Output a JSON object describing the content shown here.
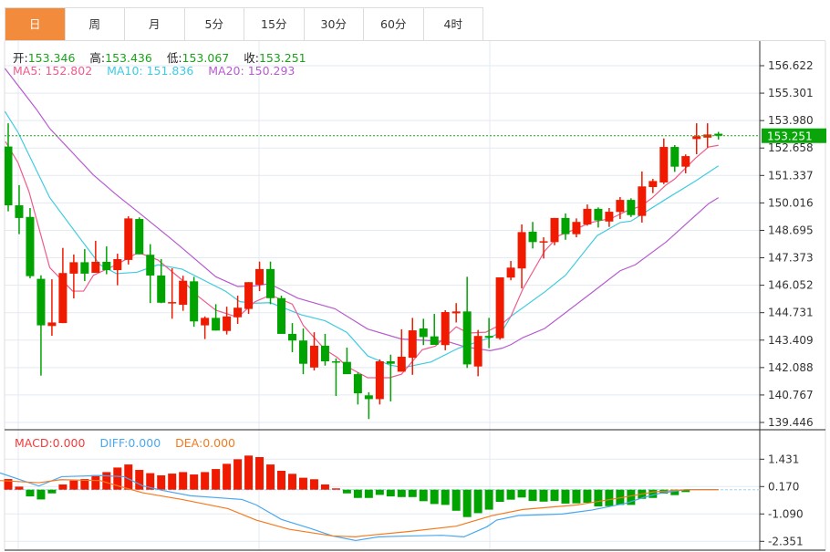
{
  "tabs": [
    {
      "label": "日",
      "active": true
    },
    {
      "label": "周"
    },
    {
      "label": "月"
    },
    {
      "label": "5分"
    },
    {
      "label": "15分"
    },
    {
      "label": "30分"
    },
    {
      "label": "60分"
    },
    {
      "label": "4时"
    }
  ],
  "ohlc": {
    "open_label": "开:",
    "open": "153.346",
    "high_label": "高:",
    "high": "153.436",
    "low_label": "低:",
    "low": "153.067",
    "close_label": "收:",
    "close": "153.251"
  },
  "ma": {
    "ma5": "MA5: 152.802",
    "ma10": "MA10: 151.836",
    "ma20": "MA20: 150.293"
  },
  "macd_legend": {
    "macd": "MACD:0.000",
    "diff": "DIFF:0.000",
    "dea": "DEA:0.000"
  },
  "colors": {
    "up": "#f01a00",
    "down": "#00a300",
    "ma5": "#ee5c8c",
    "ma10": "#3fcbe0",
    "ma20": "#b75bd0",
    "diff": "#4aa8f0",
    "dea": "#f57a1e",
    "tab_active": "#f28c3c"
  },
  "chart_data": {
    "type": "candlestick",
    "last_price_tag": "153.251",
    "last_price": 153.251,
    "price_ticks": [
      "156.622",
      "155.301",
      "153.980",
      "152.658",
      "151.337",
      "150.016",
      "148.695",
      "147.373",
      "146.052",
      "144.731",
      "143.409",
      "142.088",
      "140.767",
      "139.446"
    ],
    "price_range": [
      139.446,
      156.622
    ],
    "macd_ticks": [
      "1.431",
      "0.170",
      "-1.090",
      "-2.351"
    ],
    "candles_ohlc": [
      [
        152.73,
        153.85,
        149.61,
        149.9
      ],
      [
        149.9,
        150.87,
        148.51,
        149.29
      ],
      [
        149.34,
        149.77,
        146.39,
        146.49
      ],
      [
        146.36,
        146.53,
        141.7,
        144.12
      ],
      [
        144.09,
        146.34,
        143.62,
        144.26
      ],
      [
        144.23,
        147.85,
        144.23,
        146.64
      ],
      [
        146.61,
        147.53,
        145.42,
        147.16
      ],
      [
        147.16,
        147.79,
        146.25,
        146.61
      ],
      [
        146.65,
        148.19,
        146.65,
        147.18
      ],
      [
        147.18,
        147.92,
        146.58,
        146.78
      ],
      [
        146.78,
        147.57,
        146.05,
        147.31
      ],
      [
        147.27,
        149.37,
        147.05,
        149.27
      ],
      [
        149.24,
        149.32,
        147.54,
        147.54
      ],
      [
        147.52,
        148.03,
        145.19,
        146.52
      ],
      [
        146.52,
        147.31,
        145.19,
        145.21
      ],
      [
        145.19,
        146.87,
        144.44,
        145.24
      ],
      [
        145.11,
        146.51,
        144.82,
        146.27
      ],
      [
        146.24,
        146.46,
        144.05,
        144.31
      ],
      [
        144.12,
        144.55,
        143.46,
        144.48
      ],
      [
        144.48,
        145.14,
        143.87,
        143.87
      ],
      [
        143.85,
        145.02,
        143.68,
        144.55
      ],
      [
        144.51,
        145.55,
        144.19,
        144.97
      ],
      [
        144.91,
        146.2,
        144.67,
        146.2
      ],
      [
        146.07,
        147.19,
        145.77,
        146.83
      ],
      [
        146.83,
        147.19,
        145.14,
        145.43
      ],
      [
        145.43,
        145.55,
        143.71,
        143.71
      ],
      [
        143.71,
        144.23,
        142.83,
        143.39
      ],
      [
        143.39,
        143.97,
        141.77,
        142.27
      ],
      [
        142.09,
        143.79,
        141.95,
        143.14
      ],
      [
        143.14,
        143.71,
        142.18,
        142.39
      ],
      [
        142.39,
        142.53,
        140.72,
        142.33
      ],
      [
        142.36,
        143.05,
        141.77,
        141.77
      ],
      [
        141.77,
        141.85,
        140.31,
        140.85
      ],
      [
        140.75,
        140.9,
        139.61,
        140.57
      ],
      [
        140.57,
        142.48,
        140.31,
        142.39
      ],
      [
        142.39,
        142.71,
        140.46,
        142.27
      ],
      [
        141.89,
        143.93,
        141.89,
        142.61
      ],
      [
        142.56,
        144.48,
        141.74,
        143.88
      ],
      [
        143.97,
        144.44,
        143.17,
        143.56
      ],
      [
        143.59,
        144.67,
        143.18,
        143.18
      ],
      [
        143.17,
        144.85,
        142.92,
        144.76
      ],
      [
        144.7,
        145.19,
        144.26,
        144.79
      ],
      [
        144.79,
        146.46,
        142.07,
        142.24
      ],
      [
        142.14,
        143.9,
        141.67,
        143.61
      ],
      [
        143.61,
        144.48,
        143.02,
        143.53
      ],
      [
        143.5,
        146.43,
        143.43,
        146.43
      ],
      [
        146.42,
        147.22,
        146.29,
        146.9
      ],
      [
        146.86,
        148.98,
        145.9,
        148.61
      ],
      [
        148.63,
        149.1,
        147.82,
        148.13
      ],
      [
        148.11,
        148.36,
        147.34,
        148.17
      ],
      [
        148.13,
        149.29,
        147.98,
        149.29
      ],
      [
        149.29,
        149.51,
        148.24,
        148.51
      ],
      [
        148.51,
        149.27,
        148.36,
        149.1
      ],
      [
        148.98,
        149.94,
        148.92,
        149.73
      ],
      [
        149.73,
        149.8,
        148.83,
        149.17
      ],
      [
        149.12,
        149.77,
        148.86,
        149.59
      ],
      [
        149.58,
        150.3,
        149.24,
        150.16
      ],
      [
        150.16,
        150.24,
        149.34,
        149.43
      ],
      [
        149.39,
        151.53,
        149.07,
        150.81
      ],
      [
        150.78,
        151.17,
        150.49,
        151.07
      ],
      [
        151.0,
        153.12,
        150.92,
        152.71
      ],
      [
        152.71,
        152.8,
        151.51,
        151.76
      ],
      [
        151.76,
        152.35,
        151.44,
        152.27
      ],
      [
        153.09,
        153.85,
        152.36,
        153.23
      ],
      [
        153.16,
        153.85,
        152.68,
        153.31
      ],
      [
        153.346,
        153.436,
        153.067,
        153.251
      ]
    ],
    "ma5": [
      [
        -0.25,
        152.97
      ],
      [
        0.9,
        151.95
      ],
      [
        1.9,
        150.56
      ],
      [
        3.8,
        146.9
      ],
      [
        5.9,
        145.77
      ],
      [
        6.9,
        145.77
      ],
      [
        7.8,
        146.53
      ],
      [
        9.9,
        147.04
      ],
      [
        11.9,
        147.63
      ],
      [
        13.7,
        147.27
      ],
      [
        15.9,
        146.31
      ],
      [
        17.4,
        145.51
      ],
      [
        19.0,
        144.85
      ],
      [
        21.0,
        144.51
      ],
      [
        22.6,
        145.26
      ],
      [
        24.0,
        145.58
      ],
      [
        26.0,
        145.14
      ],
      [
        27.0,
        144.12
      ],
      [
        29.0,
        142.95
      ],
      [
        30.1,
        142.58
      ],
      [
        31.0,
        142.14
      ],
      [
        32.9,
        141.6
      ],
      [
        34.9,
        141.6
      ],
      [
        36.0,
        141.77
      ],
      [
        37.9,
        142.95
      ],
      [
        39.1,
        143.12
      ],
      [
        41.0,
        144.05
      ],
      [
        42.1,
        143.75
      ],
      [
        43.7,
        143.79
      ],
      [
        45.2,
        144.19
      ],
      [
        46.0,
        144.55
      ],
      [
        47.1,
        145.87
      ],
      [
        49.1,
        147.7
      ],
      [
        50.4,
        148.44
      ],
      [
        51.8,
        148.73
      ],
      [
        53.3,
        149.07
      ],
      [
        55.2,
        149.27
      ],
      [
        56.6,
        149.63
      ],
      [
        57.9,
        149.86
      ],
      [
        58.9,
        150.24
      ],
      [
        60.2,
        150.88
      ],
      [
        61.0,
        151.17
      ],
      [
        62.9,
        152.17
      ],
      [
        64.1,
        152.71
      ],
      [
        65.0,
        152.79
      ]
    ],
    "ma10": [
      [
        -0.3,
        154.42
      ],
      [
        0.9,
        153.41
      ],
      [
        3.8,
        150.27
      ],
      [
        6.5,
        148.36
      ],
      [
        8.4,
        147.04
      ],
      [
        9.9,
        146.61
      ],
      [
        11.8,
        146.68
      ],
      [
        13.7,
        147.04
      ],
      [
        15.9,
        146.83
      ],
      [
        19.9,
        145.76
      ],
      [
        21.2,
        145.26
      ],
      [
        22.6,
        145.19
      ],
      [
        24.0,
        145.21
      ],
      [
        26.8,
        144.63
      ],
      [
        29.0,
        144.34
      ],
      [
        31.0,
        143.78
      ],
      [
        32.9,
        142.65
      ],
      [
        34.9,
        142.21
      ],
      [
        36.2,
        142.09
      ],
      [
        38.7,
        142.36
      ],
      [
        41.2,
        143.02
      ],
      [
        44.1,
        143.53
      ],
      [
        45.2,
        143.83
      ],
      [
        46.0,
        144.55
      ],
      [
        49.1,
        145.73
      ],
      [
        51.0,
        146.53
      ],
      [
        53.9,
        148.44
      ],
      [
        56.0,
        149.07
      ],
      [
        57.0,
        149.14
      ],
      [
        60.2,
        150.2
      ],
      [
        62.9,
        151.07
      ],
      [
        65.0,
        151.8
      ]
    ],
    "ma20": [
      [
        -0.3,
        156.49
      ],
      [
        2.6,
        154.51
      ],
      [
        3.8,
        153.6
      ],
      [
        7.8,
        151.36
      ],
      [
        9.9,
        150.41
      ],
      [
        12.0,
        149.53
      ],
      [
        14.9,
        148.29
      ],
      [
        15.9,
        147.85
      ],
      [
        19.0,
        146.46
      ],
      [
        21.0,
        145.99
      ],
      [
        22.6,
        146.02
      ],
      [
        23.9,
        146.13
      ],
      [
        26.5,
        145.43
      ],
      [
        29.9,
        144.92
      ],
      [
        32.9,
        143.94
      ],
      [
        36.0,
        143.46
      ],
      [
        40.2,
        143.34
      ],
      [
        41.8,
        143.09
      ],
      [
        44.1,
        142.9
      ],
      [
        45.2,
        143.02
      ],
      [
        46.0,
        143.19
      ],
      [
        47.1,
        143.53
      ],
      [
        49.1,
        143.97
      ],
      [
        51.0,
        144.73
      ],
      [
        53.3,
        145.65
      ],
      [
        56.0,
        146.75
      ],
      [
        57.4,
        147.04
      ],
      [
        60.2,
        148.13
      ],
      [
        61.0,
        148.51
      ],
      [
        64.1,
        149.98
      ],
      [
        65.0,
        150.27
      ]
    ],
    "macd": [
      0.49,
      0.14,
      -0.31,
      -0.45,
      -0.17,
      0.24,
      0.42,
      0.49,
      0.67,
      0.81,
      1.02,
      1.16,
      0.91,
      0.76,
      0.66,
      0.74,
      0.81,
      0.7,
      0.81,
      0.95,
      1.19,
      1.4,
      1.57,
      1.5,
      1.16,
      0.87,
      0.73,
      0.55,
      0.48,
      0.24,
      0.06,
      -0.17,
      -0.38,
      -0.38,
      -0.24,
      -0.31,
      -0.34,
      -0.34,
      -0.53,
      -0.66,
      -0.7,
      -0.97,
      -1.26,
      -1.08,
      -0.92,
      -0.56,
      -0.46,
      -0.36,
      -0.52,
      -0.55,
      -0.52,
      -0.64,
      -0.63,
      -0.6,
      -0.77,
      -0.76,
      -0.7,
      -0.7,
      -0.42,
      -0.38,
      -0.18,
      -0.25,
      -0.11,
      0,
      0,
      0
    ],
    "diff": [
      [
        -0.75,
        0.77
      ],
      [
        2.8,
        0.17
      ],
      [
        4.9,
        0.6
      ],
      [
        8.4,
        0.65
      ],
      [
        10.6,
        0.6
      ],
      [
        12.3,
        0.18
      ],
      [
        14.2,
        -0.04
      ],
      [
        16.7,
        -0.28
      ],
      [
        21.4,
        -0.45
      ],
      [
        22.7,
        -0.7
      ],
      [
        25,
        -1.37
      ],
      [
        27.7,
        -1.79
      ],
      [
        29.7,
        -2.13
      ],
      [
        31.8,
        -2.34
      ],
      [
        33.9,
        -2.17
      ],
      [
        36.6,
        -2.13
      ],
      [
        39.7,
        -2.1
      ],
      [
        41.7,
        -2.17
      ],
      [
        43.8,
        -1.71
      ],
      [
        44.7,
        -1.4
      ],
      [
        46.7,
        -1.19
      ],
      [
        50.7,
        -1.12
      ],
      [
        53.4,
        -0.94
      ],
      [
        56.5,
        -0.63
      ],
      [
        58.2,
        -0.35
      ],
      [
        59.6,
        -0.17
      ],
      [
        62,
        0
      ],
      [
        65,
        0
      ]
    ],
    "dea": [
      [
        -0.75,
        0.42
      ],
      [
        2.8,
        0.32
      ],
      [
        4.8,
        0.46
      ],
      [
        8.4,
        0.42
      ],
      [
        10.3,
        0.14
      ],
      [
        12.3,
        -0.14
      ],
      [
        15.9,
        -0.45
      ],
      [
        20.1,
        -0.87
      ],
      [
        22.7,
        -1.4
      ],
      [
        25.7,
        -1.82
      ],
      [
        29.7,
        -2.13
      ],
      [
        31.8,
        -2.17
      ],
      [
        32.4,
        -2.13
      ],
      [
        36.6,
        -1.93
      ],
      [
        41,
        -1.68
      ],
      [
        44.3,
        -1.19
      ],
      [
        47.1,
        -0.91
      ],
      [
        52.1,
        -0.7
      ],
      [
        56.3,
        -0.35
      ],
      [
        59.1,
        -0.1
      ],
      [
        62.1,
        0
      ],
      [
        65,
        0
      ]
    ]
  }
}
